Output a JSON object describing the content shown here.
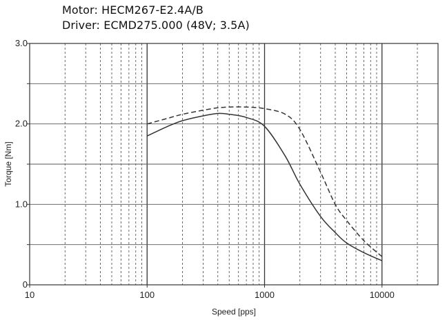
{
  "header": {
    "motor_line": "Motor: HECM267-E2.4A/B",
    "driver_line": "Driver: ECMD275.000 (48V; 3.5A)"
  },
  "chart_data": {
    "type": "line",
    "xlabel": "Speed [pps]",
    "ylabel": "Torque [Nm]",
    "xscale": "log",
    "xlim": [
      10,
      30000
    ],
    "ylim": [
      0,
      3.0
    ],
    "x_tick_labels": [
      "10",
      "100",
      "1000",
      "10000"
    ],
    "x_ticks": [
      10,
      100,
      1000,
      10000
    ],
    "y_tick_labels": [
      "0",
      "1.0",
      "2.0",
      "3.0"
    ],
    "y_ticks": [
      0,
      1.0,
      2.0,
      3.0
    ],
    "grid": true,
    "series": [
      {
        "line_style": "solid",
        "color": "#333333",
        "x": [
          100,
          150,
          200,
          300,
          400,
          500,
          700,
          1000,
          1500,
          2000,
          3000,
          4000,
          5000,
          7000,
          10000
        ],
        "y": [
          1.85,
          1.97,
          2.04,
          2.1,
          2.13,
          2.12,
          2.08,
          1.97,
          1.6,
          1.25,
          0.85,
          0.65,
          0.52,
          0.4,
          0.3
        ]
      },
      {
        "line_style": "dashed",
        "color": "#333333",
        "x": [
          100,
          150,
          200,
          300,
          400,
          500,
          700,
          1000,
          1500,
          2000,
          3000,
          4000,
          5000,
          7000,
          10000
        ],
        "y": [
          2.0,
          2.07,
          2.12,
          2.17,
          2.2,
          2.21,
          2.21,
          2.19,
          2.12,
          1.93,
          1.4,
          1.0,
          0.8,
          0.55,
          0.35
        ]
      }
    ]
  }
}
